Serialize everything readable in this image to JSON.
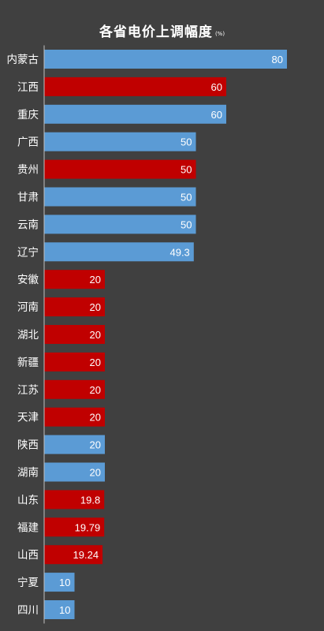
{
  "chart_data": {
    "type": "bar",
    "orientation": "horizontal",
    "title": "各省电价上调幅度",
    "unit": "(%)",
    "xlim": [
      0,
      85
    ],
    "grid": false,
    "categories": [
      "内蒙古",
      "江西",
      "重庆",
      "广西",
      "贵州",
      "甘肃",
      "云南",
      "辽宁",
      "安徽",
      "河南",
      "湖北",
      "新疆",
      "江苏",
      "天津",
      "陕西",
      "湖南",
      "山东",
      "福建",
      "山西",
      "宁夏",
      "四川"
    ],
    "values": [
      80,
      60,
      60,
      50,
      50,
      50,
      50,
      49.3,
      20,
      20,
      20,
      20,
      20,
      20,
      20,
      20,
      19.8,
      19.79,
      19.24,
      10,
      10
    ],
    "value_labels": [
      "80",
      "60",
      "60",
      "50",
      "50",
      "50",
      "50",
      "49.3",
      "20",
      "20",
      "20",
      "20",
      "20",
      "20",
      "20",
      "20",
      "19.8",
      "19.79",
      "19.24",
      "10",
      "10"
    ],
    "bar_colors": [
      "#5b9bd5",
      "#c00000",
      "#5b9bd5",
      "#5b9bd5",
      "#c00000",
      "#5b9bd5",
      "#5b9bd5",
      "#5b9bd5",
      "#c00000",
      "#c00000",
      "#c00000",
      "#c00000",
      "#c00000",
      "#c00000",
      "#5b9bd5",
      "#5b9bd5",
      "#c00000",
      "#c00000",
      "#c00000",
      "#5b9bd5",
      "#5b9bd5"
    ],
    "colors": {
      "background": "#404040",
      "blue": "#5b9bd5",
      "red": "#c00000",
      "axis": "#bfbfbf",
      "text": "#ffffff"
    }
  }
}
